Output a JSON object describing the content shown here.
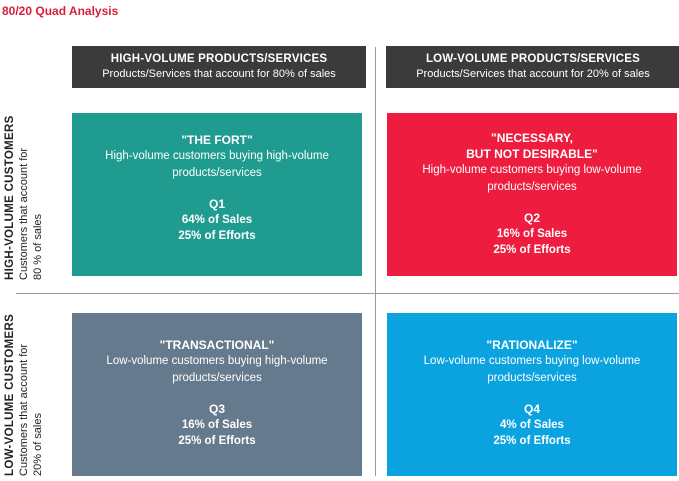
{
  "title": "80/20 Quad Analysis",
  "columns": [
    {
      "title": "HIGH-VOLUME PRODUCTS/SERVICES",
      "subtitle": "Products/Services that account for 80% of sales"
    },
    {
      "title": "LOW-VOLUME PRODUCTS/SERVICES",
      "subtitle": "Products/Services that account for 20% of sales"
    }
  ],
  "rows": [
    {
      "title": "HIGH-VOLUME CUSTOMERS",
      "sub1": "Customers that account for",
      "sub2": "80 % of sales"
    },
    {
      "title": "LOW-VOLUME CUSTOMERS",
      "sub1": "Customers that account for",
      "sub2": "20% of sales"
    }
  ],
  "quadrants": [
    {
      "name": "\"THE FORT\"",
      "desc": "High-volume customers buying high-volume products/services",
      "code": "Q1",
      "sales": "64% of Sales",
      "efforts": "25% of Efforts",
      "color": "#1f9b8f"
    },
    {
      "name": "\"NECESSARY,\nBUT NOT DESIRABLE\"",
      "desc": "High-volume customers buying low-volume products/services",
      "code": "Q2",
      "sales": "16% of Sales",
      "efforts": "25% of Efforts",
      "color": "#ee1c3e"
    },
    {
      "name": "\"TRANSACTIONAL\"",
      "desc": "Low-volume customers buying high-volume products/services",
      "code": "Q3",
      "sales": "16% of Sales",
      "efforts": "25% of Efforts",
      "color": "#667a8d"
    },
    {
      "name": "\"RATIONALIZE\"",
      "desc": "Low-volume customers buying low-volume products/services",
      "code": "Q4",
      "sales": "4% of Sales",
      "efforts": "25% of Efforts",
      "color": "#0aa3e0"
    }
  ]
}
